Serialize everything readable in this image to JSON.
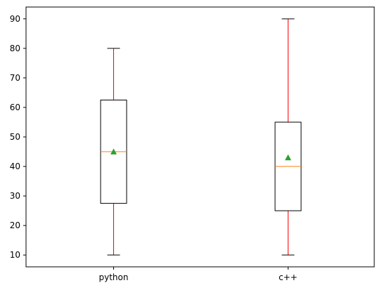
{
  "chart_data": {
    "type": "box",
    "title": "",
    "xlabel": "",
    "ylabel": "",
    "ylim": [
      6,
      94
    ],
    "yticks": [
      10,
      20,
      30,
      40,
      50,
      60,
      70,
      80,
      90
    ],
    "categories": [
      "python",
      "c++"
    ],
    "boxes": [
      {
        "label": "python",
        "whisker_low": 10,
        "q1": 27.5,
        "median": 45,
        "q3": 62.5,
        "whisker_high": 80,
        "mean": 45
      },
      {
        "label": "c++",
        "whisker_low": 10,
        "q1": 25,
        "median": 40,
        "q3": 55,
        "whisker_high": 90,
        "mean": 43
      }
    ],
    "colors": {
      "box": "#000000",
      "whisker": "#ff0000",
      "median": "#ff7f0e",
      "mean": "#2ca02c",
      "axis": "#000000"
    },
    "mean_marker": "triangle-up",
    "grid": false,
    "legend": "none"
  }
}
